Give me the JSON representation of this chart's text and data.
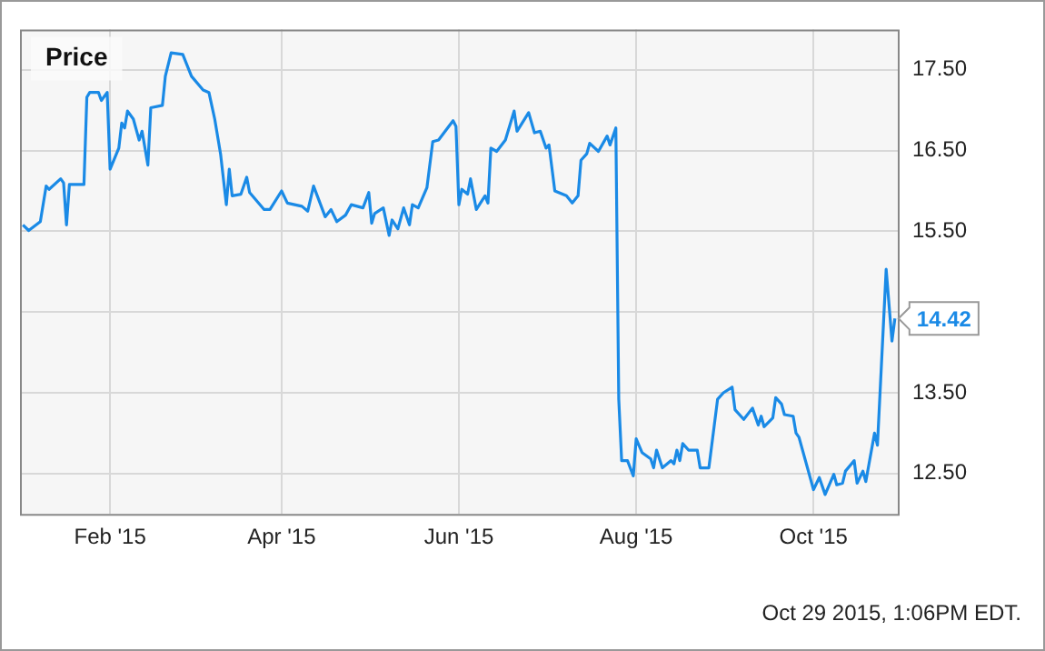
{
  "chart_data": {
    "type": "line",
    "title": "Price",
    "x": [
      "2015-01-02",
      "2015-01-04",
      "2015-01-08",
      "2015-01-10",
      "2015-01-11",
      "2015-01-15",
      "2015-01-16",
      "2015-01-17",
      "2015-01-18",
      "2015-01-23",
      "2015-01-24",
      "2015-01-25",
      "2015-01-28",
      "2015-01-29",
      "2015-01-31",
      "2015-02-01",
      "2015-02-04",
      "2015-02-05",
      "2015-02-06",
      "2015-02-07",
      "2015-02-09",
      "2015-02-11",
      "2015-02-12",
      "2015-02-14",
      "2015-02-15",
      "2015-02-19",
      "2015-02-20",
      "2015-02-22",
      "2015-02-26",
      "2015-03-01",
      "2015-03-05",
      "2015-03-07",
      "2015-03-09",
      "2015-03-11",
      "2015-03-13",
      "2015-03-14",
      "2015-03-15",
      "2015-03-18",
      "2015-03-20",
      "2015-03-21",
      "2015-03-26",
      "2015-03-28",
      "2015-04-01",
      "2015-04-03",
      "2015-04-08",
      "2015-04-10",
      "2015-04-12",
      "2015-04-16",
      "2015-04-18",
      "2015-04-20",
      "2015-04-23",
      "2015-04-25",
      "2015-04-29",
      "2015-05-01",
      "2015-05-02",
      "2015-05-03",
      "2015-05-06",
      "2015-05-08",
      "2015-05-09",
      "2015-05-11",
      "2015-05-13",
      "2015-05-15",
      "2015-05-16",
      "2015-05-18",
      "2015-05-21",
      "2015-05-23",
      "2015-05-25",
      "2015-05-30",
      "2015-05-31",
      "2015-06-01",
      "2015-06-02",
      "2015-06-04",
      "2015-06-05",
      "2015-06-07",
      "2015-06-10",
      "2015-06-11",
      "2015-06-12",
      "2015-06-14",
      "2015-06-17",
      "2015-06-20",
      "2015-06-21",
      "2015-06-25",
      "2015-06-27",
      "2015-06-29",
      "2015-07-01",
      "2015-07-02",
      "2015-07-04",
      "2015-07-08",
      "2015-07-10",
      "2015-07-12",
      "2015-07-13",
      "2015-07-15",
      "2015-07-16",
      "2015-07-19",
      "2015-07-22",
      "2015-07-23",
      "2015-07-25",
      "2015-07-26",
      "2015-07-27",
      "2015-07-29",
      "2015-07-31",
      "2015-08-01",
      "2015-08-03",
      "2015-08-06",
      "2015-08-07",
      "2015-08-08",
      "2015-08-10",
      "2015-08-13",
      "2015-08-14",
      "2015-08-15",
      "2015-08-16",
      "2015-08-17",
      "2015-08-19",
      "2015-08-22",
      "2015-08-23",
      "2015-08-26",
      "2015-08-29",
      "2015-08-31",
      "2015-09-03",
      "2015-09-04",
      "2015-09-07",
      "2015-09-10",
      "2015-09-12",
      "2015-09-13",
      "2015-09-14",
      "2015-09-17",
      "2015-09-18",
      "2015-09-20",
      "2015-09-21",
      "2015-09-24",
      "2015-09-25",
      "2015-09-26",
      "2015-10-01",
      "2015-10-03",
      "2015-10-05",
      "2015-10-08",
      "2015-10-09",
      "2015-10-11",
      "2015-10-12",
      "2015-10-15",
      "2015-10-16",
      "2015-10-18",
      "2015-10-19",
      "2015-10-22",
      "2015-10-23",
      "2015-10-26",
      "2015-10-28",
      "2015-10-29"
    ],
    "series": [
      {
        "color": "#1a8ae6",
        "values": [
          15.58,
          15.51,
          15.62,
          16.06,
          16.02,
          16.15,
          16.1,
          15.58,
          16.08,
          16.08,
          17.16,
          17.22,
          17.22,
          17.12,
          17.22,
          16.27,
          16.53,
          16.84,
          16.78,
          16.99,
          16.89,
          16.63,
          16.74,
          16.32,
          17.03,
          17.06,
          17.42,
          17.71,
          17.69,
          17.42,
          17.25,
          17.22,
          16.89,
          16.46,
          15.83,
          16.27,
          15.94,
          15.96,
          16.17,
          15.98,
          15.77,
          15.77,
          16.0,
          15.85,
          15.81,
          15.75,
          16.06,
          15.68,
          15.77,
          15.62,
          15.7,
          15.83,
          15.79,
          15.98,
          15.6,
          15.72,
          15.79,
          15.45,
          15.64,
          15.53,
          15.79,
          15.58,
          15.83,
          15.79,
          16.04,
          16.61,
          16.63,
          16.87,
          16.8,
          15.83,
          16.02,
          15.96,
          16.15,
          15.77,
          15.94,
          15.85,
          16.53,
          16.49,
          16.63,
          16.99,
          16.74,
          16.97,
          16.72,
          16.74,
          16.53,
          16.57,
          16.0,
          15.94,
          15.85,
          15.94,
          16.38,
          16.46,
          16.59,
          16.49,
          16.68,
          16.57,
          16.78,
          13.42,
          12.66,
          12.66,
          12.47,
          12.93,
          12.76,
          12.68,
          12.57,
          12.79,
          12.57,
          12.66,
          12.62,
          12.79,
          12.66,
          12.87,
          12.79,
          12.79,
          12.57,
          12.57,
          13.42,
          13.5,
          13.57,
          13.29,
          13.17,
          13.31,
          13.1,
          13.21,
          13.08,
          13.19,
          13.44,
          13.36,
          13.23,
          13.21,
          13.0,
          12.95,
          12.3,
          12.45,
          12.24,
          12.49,
          12.36,
          12.38,
          12.53,
          12.66,
          12.38,
          12.53,
          12.4,
          13.0,
          12.85,
          15.03,
          14.14,
          14.42
        ],
        "value_labels": [
          null,
          null,
          null,
          null,
          null,
          null,
          null,
          null,
          null,
          null,
          null,
          null,
          null,
          null,
          null,
          null,
          null,
          null,
          null,
          null,
          null,
          null,
          null,
          null,
          null,
          null,
          null,
          null,
          null,
          null,
          null,
          null,
          null,
          null,
          null,
          null,
          null,
          null,
          null,
          null,
          null,
          null,
          null,
          null,
          null,
          null,
          null,
          null,
          null,
          null,
          null,
          null,
          null,
          null,
          null,
          null,
          null,
          null,
          null,
          null,
          null,
          null,
          null,
          null,
          null,
          null,
          null,
          null,
          null,
          null,
          null,
          null,
          null,
          null,
          null,
          null,
          null,
          null,
          null,
          null,
          null,
          null,
          null,
          null,
          null,
          null,
          null,
          null,
          null,
          null,
          null,
          null,
          null,
          null,
          null,
          null,
          null,
          null,
          null,
          null,
          null,
          null,
          null,
          null,
          null,
          null,
          null,
          null,
          null,
          null,
          null,
          null,
          null,
          null,
          null,
          null,
          null,
          null,
          null,
          null,
          null,
          null,
          null,
          null,
          null,
          null,
          null,
          null,
          null,
          null,
          null,
          null,
          null,
          null,
          null,
          null,
          null,
          null,
          null,
          null,
          null,
          null,
          null,
          null,
          null,
          null,
          null,
          "14.42"
        ]
      }
    ],
    "xlim": [
      "2015-01-01",
      "2015-10-30"
    ],
    "xticks": [
      {
        "value": "2015-02-01",
        "label": "Feb '15"
      },
      {
        "value": "2015-04-01",
        "label": "Apr '15"
      },
      {
        "value": "2015-06-01",
        "label": "Jun '15"
      },
      {
        "value": "2015-08-01",
        "label": "Aug '15"
      },
      {
        "value": "2015-10-01",
        "label": "Oct '15"
      }
    ],
    "ylim": [
      12,
      18
    ],
    "yticks": [
      {
        "value": 12.5,
        "label": "12.50"
      },
      {
        "value": 13.5,
        "label": "13.50"
      },
      {
        "value": 14.5,
        "label": null
      },
      {
        "value": 15.5,
        "label": "15.50"
      },
      {
        "value": 16.5,
        "label": "16.50"
      },
      {
        "value": 17.5,
        "label": "17.50"
      }
    ],
    "grid": true,
    "marker": "none",
    "line_style": "solid",
    "annotations": [
      "Oct 29 2015, 1:06PM EDT."
    ]
  }
}
